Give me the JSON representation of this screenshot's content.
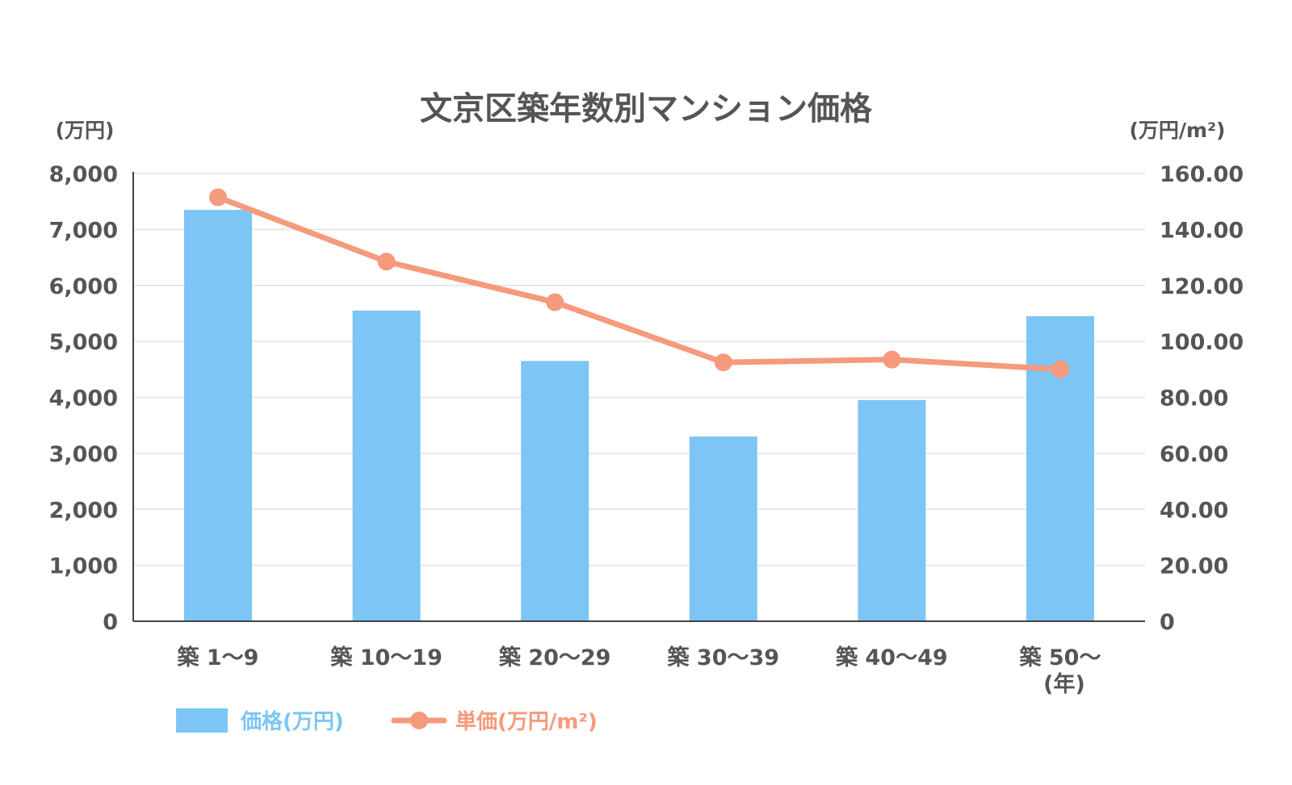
{
  "chart_data": {
    "type": "bar",
    "title": "文京区築年数別マンション価格",
    "categories": [
      "築 1〜9",
      "築 10〜19",
      "築 20〜29",
      "築 30〜39",
      "築 40〜49",
      "築 50〜"
    ],
    "x_unit": "(年)",
    "left_axis": {
      "unit": "(万円)",
      "ylim": [
        0,
        8000
      ],
      "ticks": [
        0,
        1000,
        2000,
        3000,
        4000,
        5000,
        6000,
        7000,
        8000
      ],
      "tick_labels": [
        "0",
        "1,000",
        "2,000",
        "3,000",
        "4,000",
        "5,000",
        "6,000",
        "7,000",
        "8,000"
      ]
    },
    "right_axis": {
      "unit": "(万円/m²)",
      "ylim": [
        0,
        160
      ],
      "ticks": [
        0,
        20,
        40,
        60,
        80,
        100,
        120,
        140,
        160
      ],
      "tick_labels": [
        "0",
        "20.00",
        "40.00",
        "60.00",
        "80.00",
        "100.00",
        "120.00",
        "140.00",
        "160.00"
      ]
    },
    "series": [
      {
        "name": "価格(万円)",
        "type": "bar",
        "axis": "left",
        "color": "#7cc5f4",
        "values": [
          7350,
          5550,
          4650,
          3300,
          3950,
          5450
        ]
      },
      {
        "name": "単価(万円/m²)",
        "type": "line",
        "axis": "right",
        "color": "#f59a7c",
        "values": [
          151.5,
          128.5,
          114.0,
          92.5,
          93.5,
          90.0
        ]
      }
    ],
    "grid": true,
    "legend_position": "bottom-left"
  }
}
